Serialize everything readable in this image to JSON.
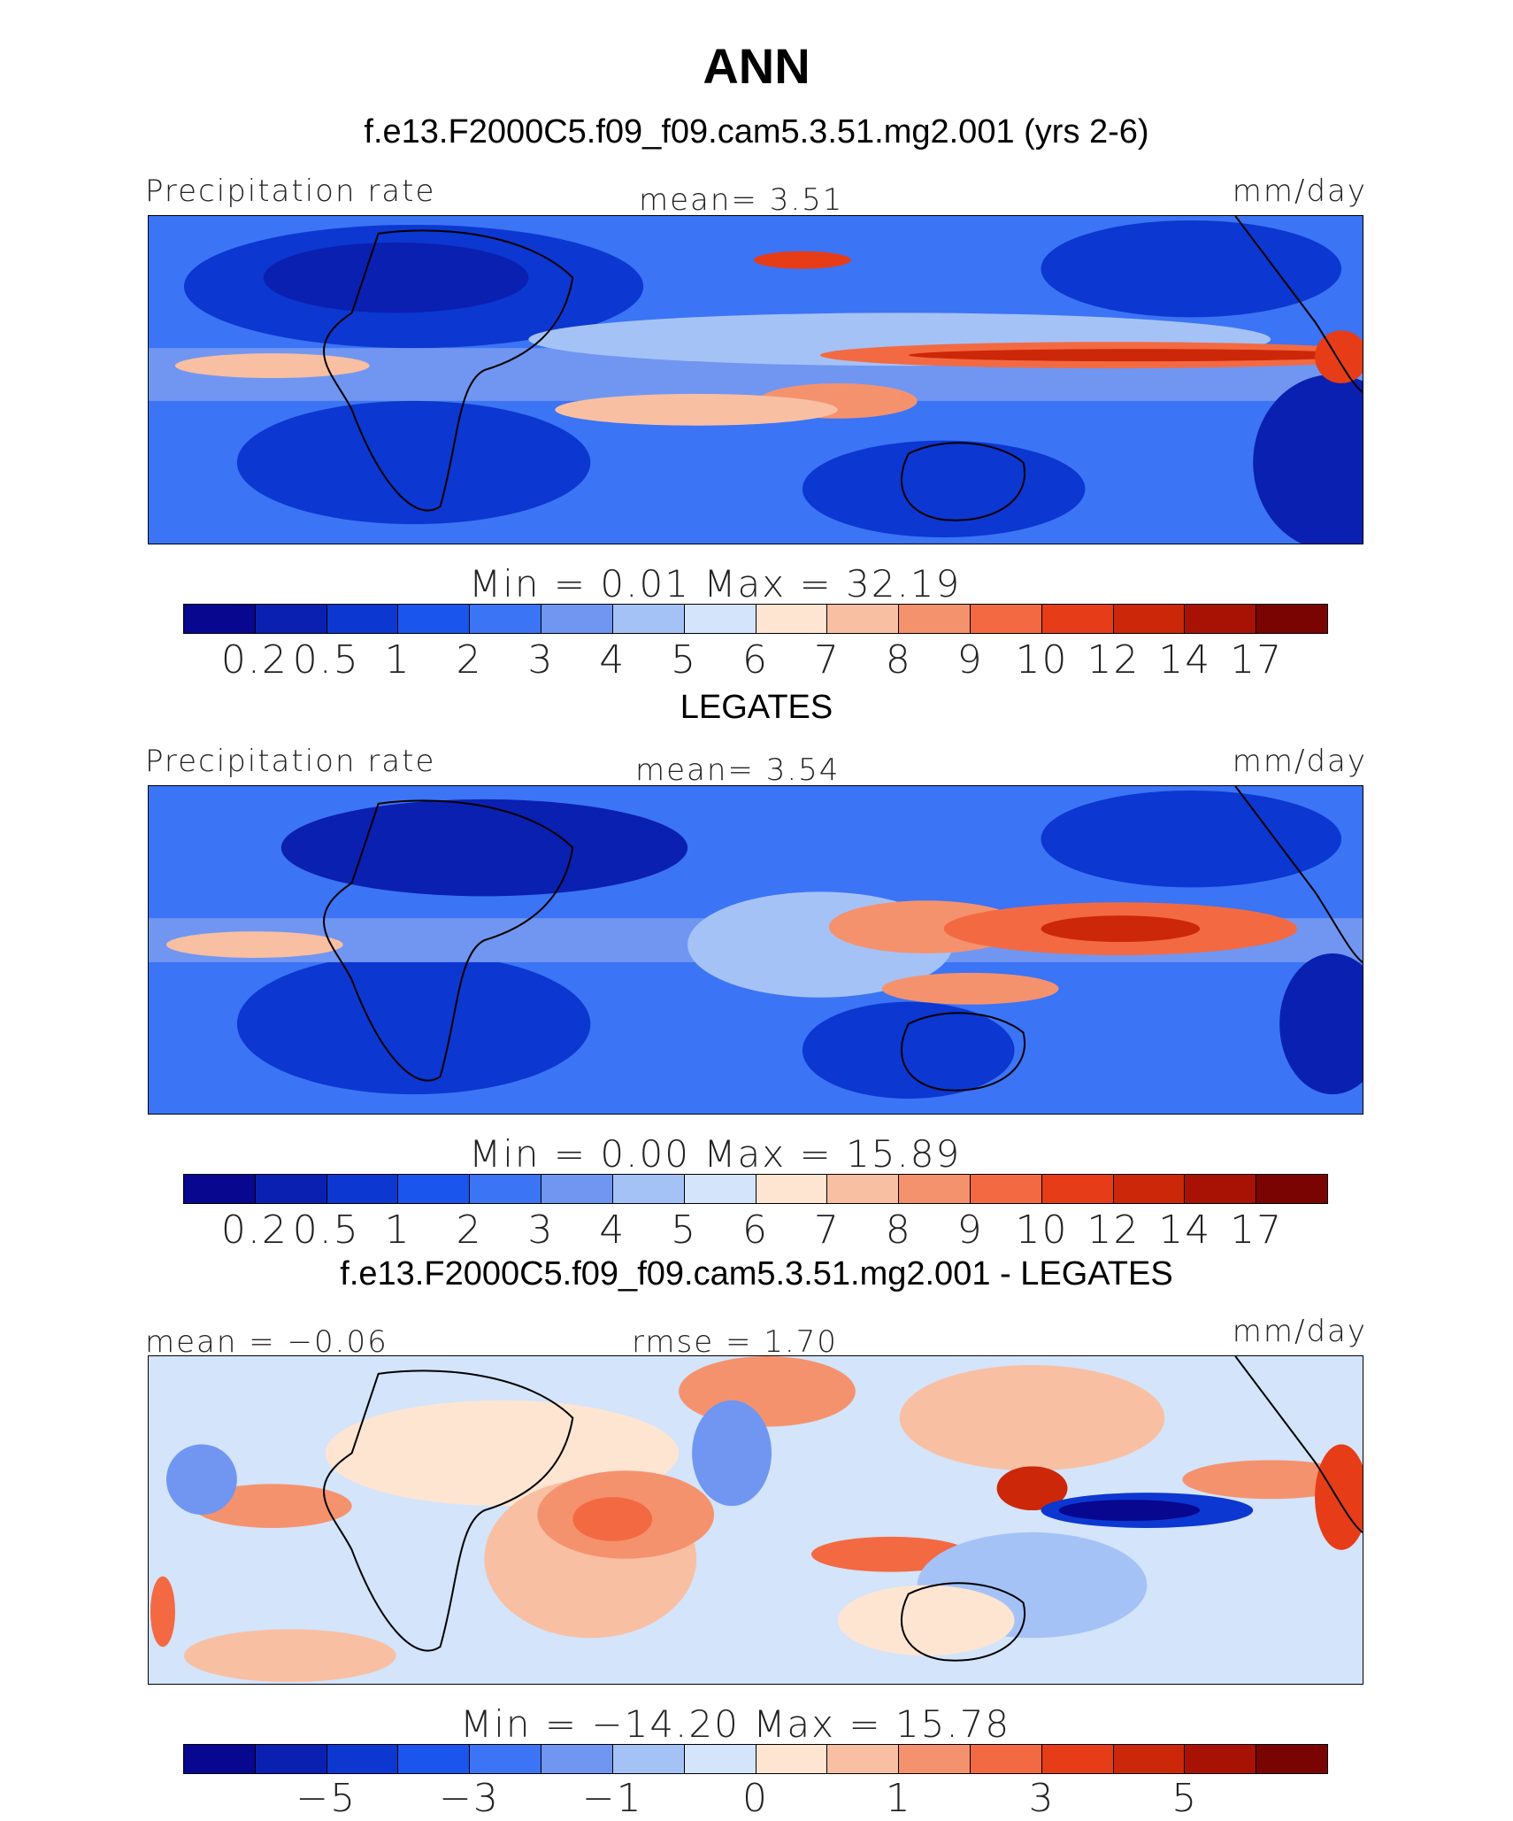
{
  "title": "ANN",
  "subtitle": "f.e13.F2000C5.f09_f09.cam5.3.51.mg2.001 (yrs 2-6)",
  "palette": [
    "#08078f",
    "#0a20b0",
    "#0c37d0",
    "#1a55ee",
    "#3b74f5",
    "#7096f2",
    "#a5c2f7",
    "#d3e4fb",
    "#fde5d2",
    "#f9bfa2",
    "#f5926e",
    "#f36a42",
    "#e63d18",
    "#cc2708",
    "#a81205",
    "#7a0402"
  ],
  "panels": [
    {
      "id": "model",
      "left_label": "Precipitation rate",
      "center_label": "mean=   3.51",
      "right_label": "mm/day",
      "minmax": "Min  =    0.01  Max  =   32.19",
      "ticks": [
        "0.2",
        "0.5",
        "1",
        "2",
        "3",
        "4",
        "5",
        "6",
        "7",
        "8",
        "9",
        "10",
        "12",
        "14",
        "17"
      ]
    },
    {
      "id": "obs",
      "title": "LEGATES",
      "left_label": "Precipitation rate",
      "center_label": "mean=   3.54",
      "right_label": "mm/day",
      "minmax": "Min  =    0.00  Max  =   15.89",
      "ticks": [
        "0.2",
        "0.5",
        "1",
        "2",
        "3",
        "4",
        "5",
        "6",
        "7",
        "8",
        "9",
        "10",
        "12",
        "14",
        "17"
      ]
    },
    {
      "id": "diff",
      "title": "f.e13.F2000C5.f09_f09.cam5.3.51.mg2.001 - LEGATES",
      "left_label": "mean  =  −0.06",
      "center_label": "rmse  =   1.70",
      "right_label": "mm/day",
      "minmax": "Min  =  −14.20  Max  =   15.78",
      "ticks": [
        "−5",
        "−3",
        "−1",
        "0",
        "1",
        "3",
        "5"
      ]
    }
  ]
}
